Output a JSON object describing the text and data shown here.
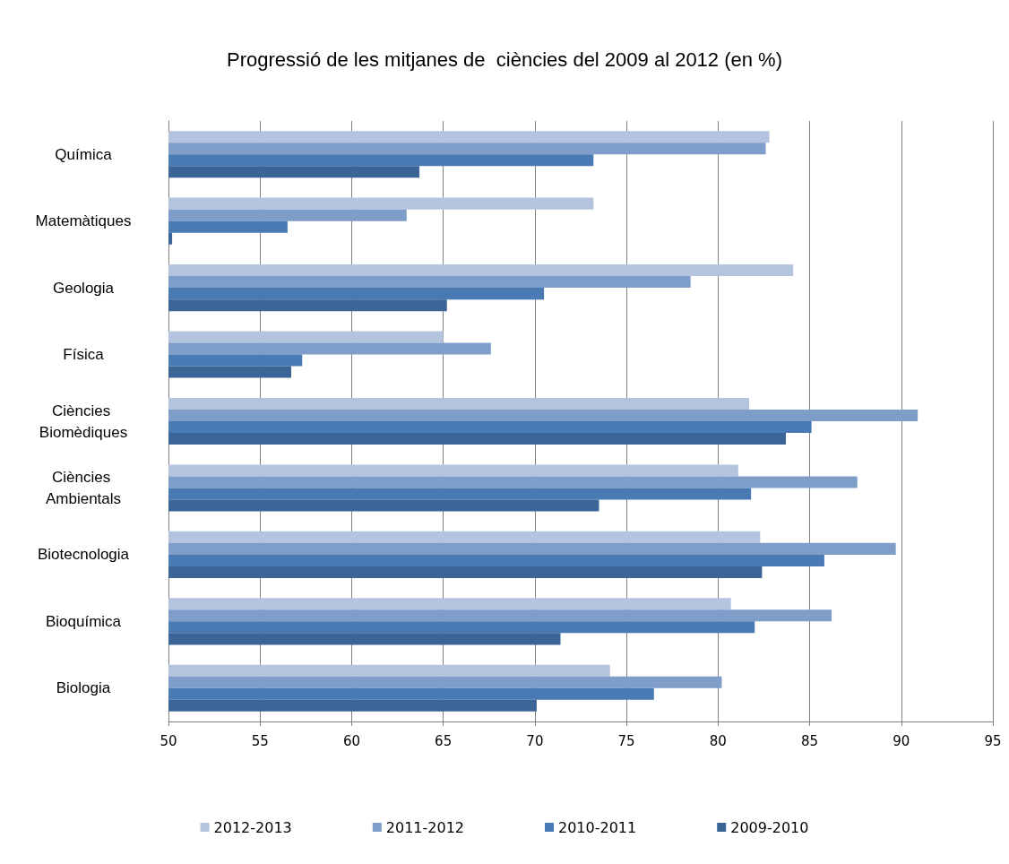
{
  "chart_data": {
    "type": "bar",
    "orientation": "horizontal",
    "title": "Progressió de les mitjanes de  ciències del 2009 al 2012 (en %)",
    "categories": [
      "Química",
      "Matemàtiques",
      "Geologia",
      "Física",
      "Ciències Biomèdiques",
      "Ciències Ambientals",
      "Biotecnologia",
      "Bioquímica",
      "Biologia"
    ],
    "series": [
      {
        "name": "2012-2013",
        "color": "#b4c3de",
        "values": [
          82.8,
          73.2,
          84.1,
          65.0,
          81.7,
          81.1,
          82.3,
          80.7,
          74.1
        ]
      },
      {
        "name": "2011-2012",
        "color": "#7e9dc9",
        "values": [
          82.6,
          63.0,
          78.5,
          67.6,
          90.9,
          87.6,
          89.7,
          86.2,
          80.2
        ]
      },
      {
        "name": "2010-2011",
        "color": "#4a7ab4",
        "values": [
          73.2,
          56.5,
          70.5,
          57.3,
          85.1,
          81.8,
          85.8,
          82.0,
          76.5
        ]
      },
      {
        "name": "2009-2010",
        "color": "#3b6596",
        "values": [
          63.7,
          50.2,
          65.2,
          56.7,
          83.7,
          73.5,
          82.4,
          71.4,
          70.1
        ]
      }
    ],
    "xlim": [
      50,
      95
    ],
    "xticks": [
      50,
      55,
      60,
      65,
      70,
      75,
      80,
      85,
      90,
      95
    ],
    "grid": "x",
    "legend": "bottom"
  }
}
